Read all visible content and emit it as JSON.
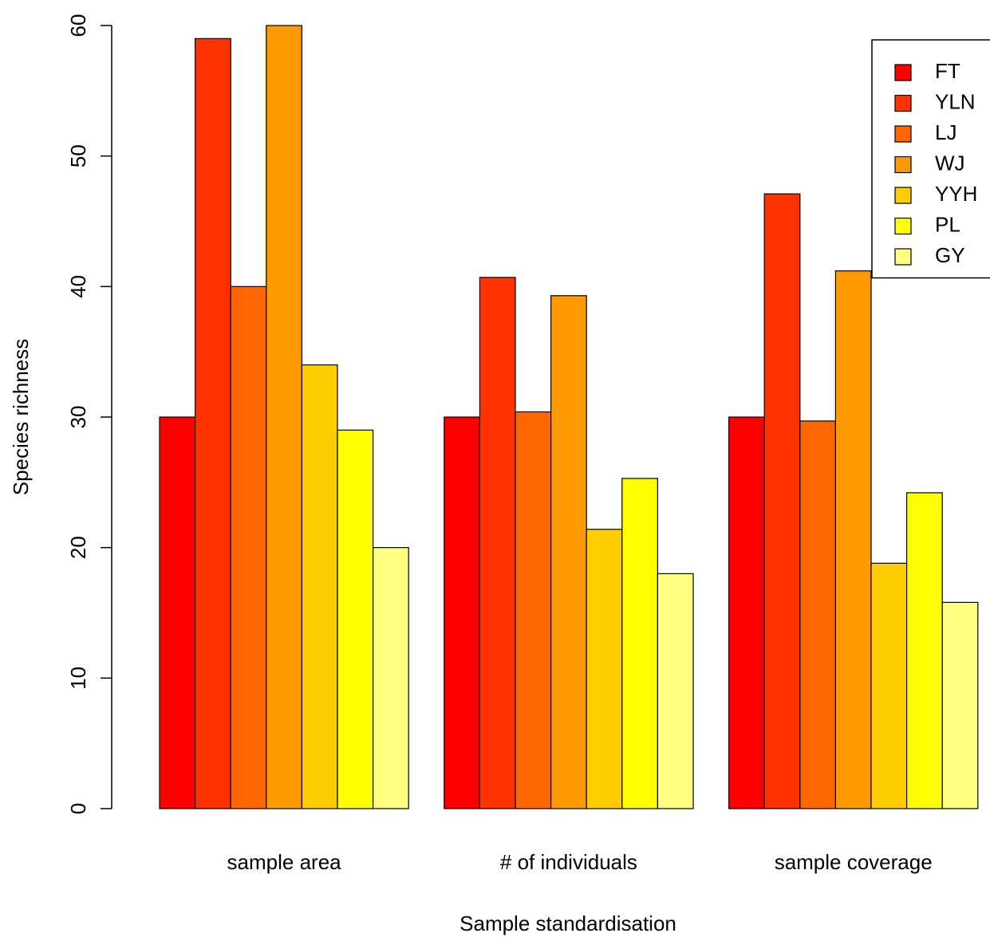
{
  "chart_data": {
    "type": "bar",
    "xlabel": "Sample standardisation",
    "ylabel": "Species richness",
    "categories": [
      "sample area",
      "# of individuals",
      "sample coverage"
    ],
    "series": [
      {
        "name": "FT",
        "color": "#FF0000",
        "values": [
          30,
          30,
          30
        ]
      },
      {
        "name": "YLN",
        "color": "#FF3300",
        "values": [
          59,
          40.7,
          47.1
        ]
      },
      {
        "name": "LJ",
        "color": "#FF6600",
        "values": [
          40,
          30.4,
          29.7
        ]
      },
      {
        "name": "WJ",
        "color": "#FF9900",
        "values": [
          60,
          39.3,
          41.2
        ]
      },
      {
        "name": "YYH",
        "color": "#FFCC00",
        "values": [
          34,
          21.4,
          18.8
        ]
      },
      {
        "name": "PL",
        "color": "#FFFF00",
        "values": [
          29,
          25.3,
          24.2
        ]
      },
      {
        "name": "GY",
        "color": "#FFFF80",
        "values": [
          20,
          18,
          15.8
        ]
      }
    ],
    "ylim": [
      0,
      60
    ],
    "yticks": [
      0,
      10,
      20,
      30,
      40,
      50,
      60
    ],
    "legend": "top-right"
  }
}
